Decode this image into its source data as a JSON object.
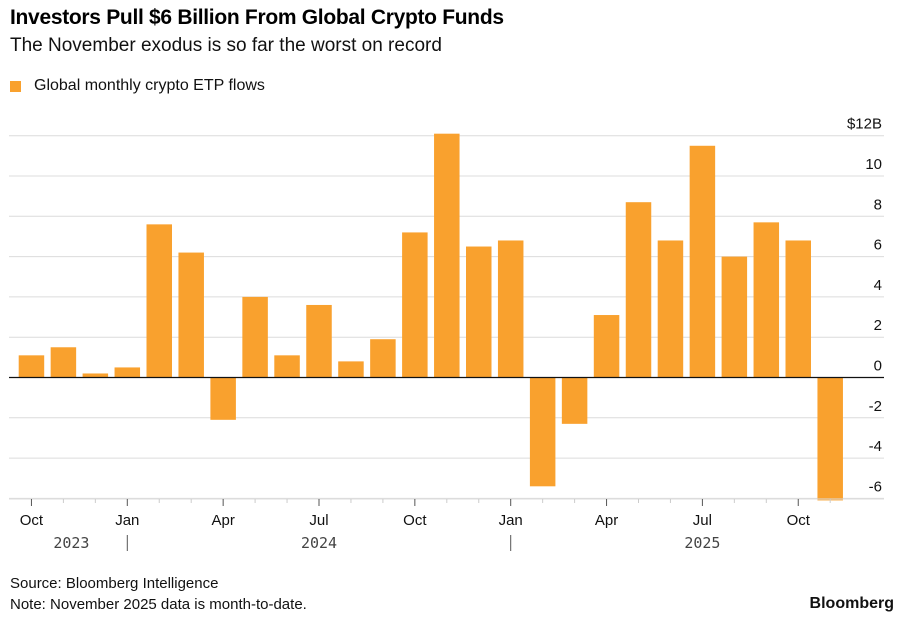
{
  "header": {
    "title": "Investors Pull $6 Billion From Global Crypto Funds",
    "subtitle": "The November exodus is so far the worst on record"
  },
  "legend": {
    "label": "Global monthly crypto ETP flows",
    "color": "#F9A12E"
  },
  "footer": {
    "source": "Source: Bloomberg Intelligence",
    "note": "Note: November 2025 data is month-to-date.",
    "brand": "Bloomberg"
  },
  "chart_data": {
    "type": "bar",
    "title": "Investors Pull $6 Billion From Global Crypto Funds",
    "subtitle": "The November exodus is so far the worst on record",
    "xlabel": "",
    "ylabel": "",
    "unit": "$B",
    "categories": [
      "Oct 2023",
      "Nov 2023",
      "Dec 2023",
      "Jan 2024",
      "Feb 2024",
      "Mar 2024",
      "Apr 2024",
      "May 2024",
      "Jun 2024",
      "Jul 2024",
      "Aug 2024",
      "Sep 2024",
      "Oct 2024",
      "Nov 2024",
      "Dec 2024",
      "Jan 2025",
      "Feb 2025",
      "Mar 2025",
      "Apr 2025",
      "May 2025",
      "Jun 2025",
      "Jul 2025",
      "Aug 2025",
      "Sep 2025",
      "Oct 2025",
      "Nov 2025"
    ],
    "series": [
      {
        "name": "Global monthly crypto ETP flows",
        "color": "#F9A12E",
        "values": [
          1.1,
          1.5,
          0.2,
          0.5,
          7.6,
          6.2,
          -2.1,
          4.0,
          1.1,
          3.6,
          0.8,
          1.9,
          7.2,
          12.1,
          6.5,
          6.8,
          -5.4,
          -2.3,
          3.1,
          8.7,
          6.8,
          11.5,
          6.0,
          7.7,
          6.8,
          -6.1
        ]
      }
    ],
    "ylim": [
      -6,
      12
    ],
    "yticks": [
      12,
      10,
      8,
      6,
      4,
      2,
      0,
      -2,
      -4,
      -6
    ],
    "ytick_labels": [
      "$12B",
      "10",
      "8",
      "6",
      "4",
      "2",
      "0",
      "-2",
      "-4",
      "-6"
    ],
    "y_axis_side": "right",
    "xticks": [
      {
        "index": 0,
        "label": "Oct"
      },
      {
        "index": 3,
        "label": "Jan"
      },
      {
        "index": 6,
        "label": "Apr"
      },
      {
        "index": 9,
        "label": "Jul"
      },
      {
        "index": 12,
        "label": "Oct"
      },
      {
        "index": 15,
        "label": "Jan"
      },
      {
        "index": 18,
        "label": "Apr"
      },
      {
        "index": 21,
        "label": "Jul"
      },
      {
        "index": 24,
        "label": "Oct"
      }
    ],
    "year_labels": [
      {
        "label": "2023",
        "center_index": 1
      },
      {
        "label": "2024",
        "center_index": 9
      },
      {
        "label": "2025",
        "center_index": 21
      }
    ],
    "year_separators": [
      3,
      15
    ],
    "grid": true,
    "legend_position": "top-left"
  }
}
